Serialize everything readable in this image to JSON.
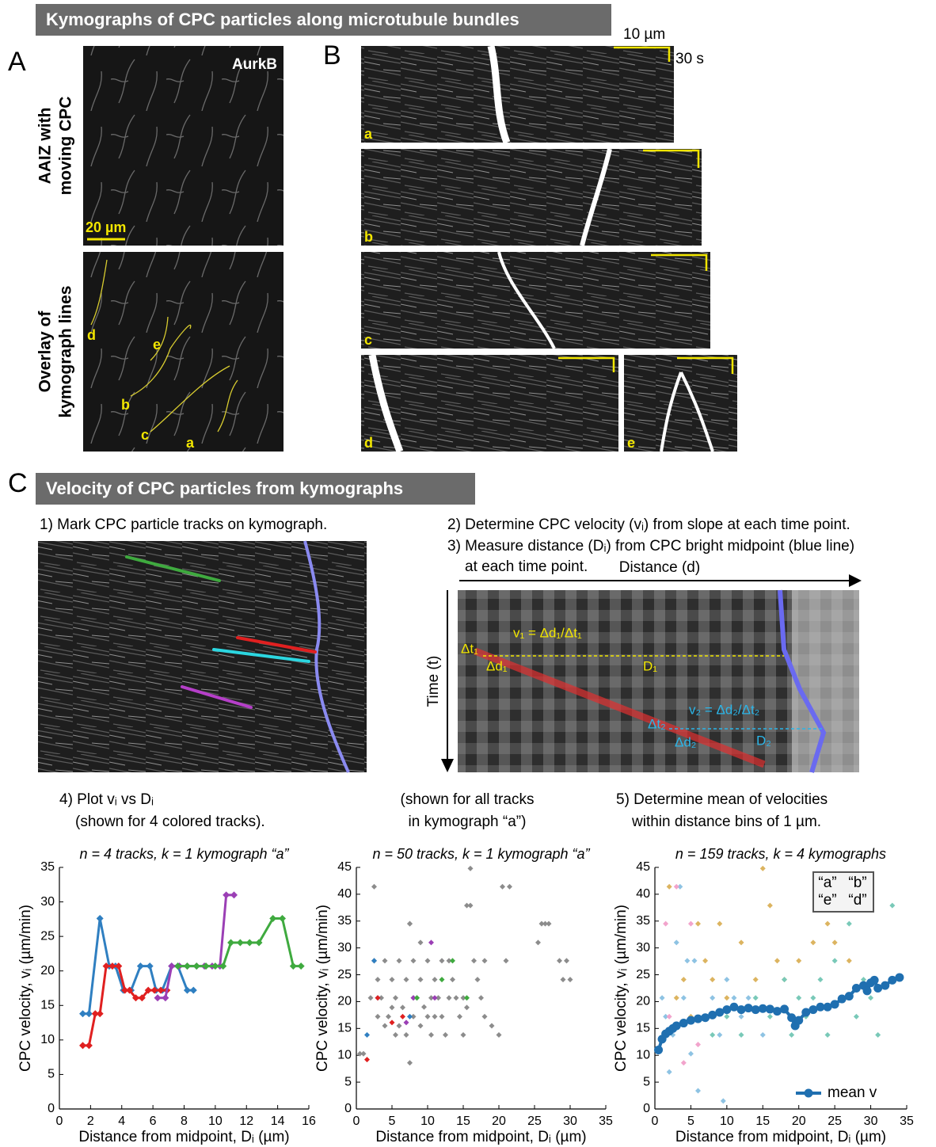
{
  "panel_ab": {
    "banner": "Kymographs of CPC particles along microtubule bundles",
    "label_a": "A",
    "label_b": "B",
    "stain": "AurkB",
    "row1_lines": [
      "AAIZ with",
      "moving CPC"
    ],
    "row2_lines": [
      "Overlay of",
      "kymograph lines"
    ],
    "scale_a": "20 µm",
    "overlay_tracks": [
      "d",
      "e",
      "b",
      "c",
      "a"
    ],
    "scale_b_distance": "10 µm",
    "scale_b_time": "30 s",
    "kymograph_labels": [
      "a",
      "b",
      "c",
      "d",
      "e"
    ]
  },
  "panel_c": {
    "label": "C",
    "banner": "Velocity of CPC particles from kymographs",
    "step1": "1) Mark CPC particle tracks on kymograph.",
    "step2": "2) Determine CPC velocity (vᵢ) from slope at each time point.",
    "step3_lines": [
      "3) Measure distance (Dᵢ) from CPC bright midpoint (blue line)",
      "at each time point."
    ],
    "diagram": {
      "distance_axis": "Distance (d)",
      "time_axis": "Time (t)",
      "v1": "v₁ = Δd₁/Δt₁",
      "dt1": "Δt₁",
      "dd1": "Δd₁",
      "D1": "D₁",
      "v2": "v₂ = Δd₂/Δt₂",
      "dt2": "Δt₂",
      "dd2": "Δd₂",
      "D2": "D₂"
    },
    "step4_lines": [
      "4) Plot vᵢ vs Dᵢ",
      "(shown for 4 colored tracks)."
    ],
    "middle_lines": [
      "(shown for all tracks",
      "in kymograph “a”)"
    ],
    "step5_lines": [
      "5) Determine mean of velocities",
      "within distance bins of 1 µm."
    ]
  },
  "chart_data": [
    {
      "type": "line",
      "subtitle": "n = 4 tracks, k = 1 kymograph “a”",
      "x_label": "Distance from midpoint, Dᵢ (µm)",
      "y_label": "CPC velocity, vᵢ (µm/min)",
      "xlim": [
        0,
        16
      ],
      "xticks": [
        0,
        2,
        4,
        6,
        8,
        10,
        12,
        14,
        16
      ],
      "ylim": [
        0,
        35
      ],
      "yticks": [
        0,
        5,
        10,
        15,
        20,
        25,
        30,
        35
      ],
      "series": [
        {
          "color": "#2f7fc1",
          "x": [
            1.5,
            1.9,
            2.6,
            3.2,
            3.6,
            4.1,
            4.6,
            5.2,
            5.8,
            6.2,
            6.6,
            7.2,
            7.6,
            8.2,
            8.6
          ],
          "values": [
            13.8,
            13.8,
            27.6,
            20.7,
            20.7,
            17.2,
            17.2,
            20.7,
            20.7,
            17.2,
            17.2,
            20.7,
            20.7,
            17.2,
            17.2
          ]
        },
        {
          "color": "#e02020",
          "x": [
            1.5,
            1.9,
            2.3,
            2.6,
            3.0,
            3.4,
            3.8,
            4.2,
            4.5,
            4.9,
            5.3,
            5.7,
            6.1,
            6.5,
            6.9
          ],
          "values": [
            9.2,
            9.2,
            13.8,
            13.8,
            20.7,
            20.7,
            20.7,
            17.2,
            17.2,
            16.1,
            16.1,
            17.2,
            17.2,
            17.2,
            17.2
          ]
        },
        {
          "color": "#9b3fb5",
          "x": [
            6.3,
            6.8,
            7.2,
            7.7,
            8.2,
            8.8,
            9.3,
            9.8,
            10.3,
            10.7,
            11.2
          ],
          "values": [
            16.1,
            16.1,
            20.7,
            20.7,
            20.7,
            20.7,
            20.7,
            20.7,
            20.7,
            31.0,
            31.0
          ]
        },
        {
          "color": "#3faa3f",
          "x": [
            7.6,
            8.2,
            8.8,
            9.4,
            10.0,
            10.5,
            11.0,
            11.6,
            12.2,
            12.8,
            13.7,
            14.3,
            15.0,
            15.5
          ],
          "values": [
            20.7,
            20.7,
            20.7,
            20.7,
            20.7,
            20.7,
            24.1,
            24.1,
            24.1,
            24.1,
            27.6,
            27.6,
            20.7,
            20.7
          ]
        }
      ]
    },
    {
      "type": "scatter",
      "subtitle": "n = 50 tracks, k = 1 kymograph “a”",
      "x_label": "Distance from midpoint, Dᵢ (µm)",
      "y_label": "CPC velocity, vᵢ (µm/min)",
      "xlim": [
        0,
        35
      ],
      "xticks": [
        0,
        5,
        10,
        15,
        20,
        25,
        30,
        35
      ],
      "ylim": [
        0,
        45
      ],
      "yticks": [
        0,
        5,
        10,
        15,
        20,
        25,
        30,
        35,
        40,
        45
      ],
      "series": [
        {
          "color": "#8c8c8c",
          "x": [
            0.5,
            1,
            2,
            2.5,
            3,
            3,
            3.5,
            4,
            4,
            4.5,
            5,
            5,
            5.5,
            5.5,
            6,
            6,
            6.5,
            7,
            7,
            7.5,
            7.5,
            8,
            8,
            8.5,
            9,
            9,
            9.5,
            10,
            10,
            10.5,
            10.5,
            11,
            11,
            11.5,
            12,
            12,
            12.5,
            13,
            13,
            13.5,
            14,
            14.5,
            15,
            15,
            15.5,
            16,
            16.5,
            17,
            17.5,
            18,
            18,
            19,
            20,
            21,
            15.5,
            16,
            20.5,
            21.5,
            25.5,
            26,
            26.5,
            27,
            28.5,
            29,
            29.5,
            30,
            7.5,
            8,
            2.5,
            9
          ],
          "values": [
            10.3,
            10.3,
            20.7,
            41.4,
            17.2,
            24.1,
            20.7,
            15.5,
            27.6,
            17.2,
            18.9,
            24.1,
            13.8,
            20.7,
            15.5,
            27.6,
            18.9,
            13.8,
            24.1,
            8.6,
            34.5,
            17.2,
            27.6,
            20.7,
            15.5,
            24.1,
            19,
            17.2,
            27.6,
            20.7,
            13.8,
            17.2,
            24.1,
            20.7,
            27.6,
            17.2,
            13.8,
            20.7,
            27.6,
            24.1,
            20.7,
            17.2,
            13.8,
            20.7,
            18.9,
            44.8,
            27.6,
            24.1,
            20.7,
            17.2,
            27.6,
            15.5,
            13.8,
            27.6,
            37.9,
            37.9,
            41.4,
            41.4,
            31,
            34.5,
            34.5,
            34.5,
            27.6,
            24.1,
            27.6,
            24.1,
            34.5,
            20.7,
            27.6,
            31
          ]
        },
        {
          "color": "#2f7fc1",
          "x": [
            1.5,
            2.5,
            3,
            7.5
          ],
          "values": [
            13.8,
            27.6,
            20.7,
            17.2
          ]
        },
        {
          "color": "#e02020",
          "x": [
            1.5,
            3,
            5,
            6.5
          ],
          "values": [
            9.2,
            20.7,
            16.1,
            17.2
          ]
        },
        {
          "color": "#9b3fb5",
          "x": [
            7,
            8,
            10.5,
            11
          ],
          "values": [
            16.1,
            20.7,
            31,
            20.7
          ]
        },
        {
          "color": "#3faa3f",
          "x": [
            8.5,
            12,
            13.5,
            15.5
          ],
          "values": [
            20.7,
            24.1,
            27.6,
            20.7
          ]
        }
      ]
    },
    {
      "type": "scatter",
      "subtitle": "n = 159 tracks, k = 4 kymographs",
      "x_label": "Distance from midpoint, Dᵢ (µm)",
      "y_label": "CPC velocity, vᵢ (µm/min)",
      "xlim": [
        0,
        35
      ],
      "xticks": [
        0,
        5,
        10,
        15,
        20,
        25,
        30,
        35
      ],
      "ylim": [
        0,
        45
      ],
      "yticks": [
        0,
        5,
        10,
        15,
        20,
        25,
        30,
        35,
        40,
        45
      ],
      "legend": "upper right",
      "series": [
        {
          "name": "“a”",
          "color": "#dcb460",
          "x": [
            2,
            3,
            4,
            5,
            6,
            7,
            8,
            9,
            10,
            12,
            14,
            15,
            16,
            17,
            18,
            20,
            22,
            24,
            25,
            27
          ],
          "values": [
            41.4,
            20.7,
            24.1,
            17.2,
            34.5,
            27.6,
            24.1,
            34.5,
            20.7,
            31,
            24.1,
            44.8,
            37.9,
            27.6,
            24.1,
            27.6,
            31,
            34.5,
            31,
            27.6
          ]
        },
        {
          "name": "“b”",
          "color": "#8ec3e3",
          "x": [
            1,
            1.5,
            2,
            2.5,
            3,
            4,
            5,
            5.5,
            6,
            7,
            8,
            9,
            9.5,
            10,
            11,
            12,
            13,
            15,
            3.5,
            4.5
          ],
          "values": [
            20.7,
            17.2,
            6.9,
            13.8,
            31,
            20.7,
            10.3,
            27.6,
            3.4,
            17.2,
            20.7,
            13.8,
            1.5,
            24.1,
            20.7,
            17.2,
            20.7,
            13.8,
            41.4,
            27.6
          ]
        },
        {
          "name": "“e”",
          "color": "#f2a4cc",
          "x": [
            1.5,
            2,
            3,
            4,
            5,
            6
          ],
          "values": [
            34.5,
            17.2,
            41.4,
            8.6,
            34.5,
            12
          ]
        },
        {
          "name": "“d”",
          "color": "#79c9b8",
          "x": [
            8,
            10,
            12,
            14,
            16,
            18,
            19,
            20,
            21,
            22,
            23,
            24,
            25,
            26,
            27,
            28,
            29,
            30,
            31,
            33
          ],
          "values": [
            13.8,
            17.2,
            13.8,
            20.7,
            17.2,
            24.1,
            13.8,
            20.7,
            17.2,
            20.7,
            24.1,
            13.8,
            27.6,
            20.7,
            34.5,
            17.2,
            24.1,
            20.7,
            13.8,
            37.9
          ]
        },
        {
          "name": "mean v",
          "type": "line",
          "color": "#1f6fb0",
          "x": [
            0.5,
            1,
            1.5,
            2,
            2.5,
            3,
            4,
            5,
            6,
            7,
            8,
            9,
            10,
            11,
            12,
            13,
            14,
            15,
            16,
            17,
            18,
            19,
            19.5,
            20,
            21,
            22,
            23,
            24,
            25,
            26,
            27,
            28,
            29,
            29.5,
            30,
            30.5,
            31,
            32,
            33,
            34
          ],
          "values": [
            11,
            13,
            14,
            14.5,
            15,
            15.5,
            16,
            16.5,
            16.8,
            17,
            17.5,
            18,
            18.5,
            19,
            18.5,
            18.8,
            18.5,
            18.7,
            18.6,
            18.2,
            18.6,
            17,
            15.5,
            16.5,
            18,
            18.5,
            19,
            19,
            19.5,
            20.5,
            21,
            22.5,
            23,
            22,
            23.5,
            24,
            22.5,
            23,
            24,
            24.5
          ]
        }
      ]
    }
  ]
}
